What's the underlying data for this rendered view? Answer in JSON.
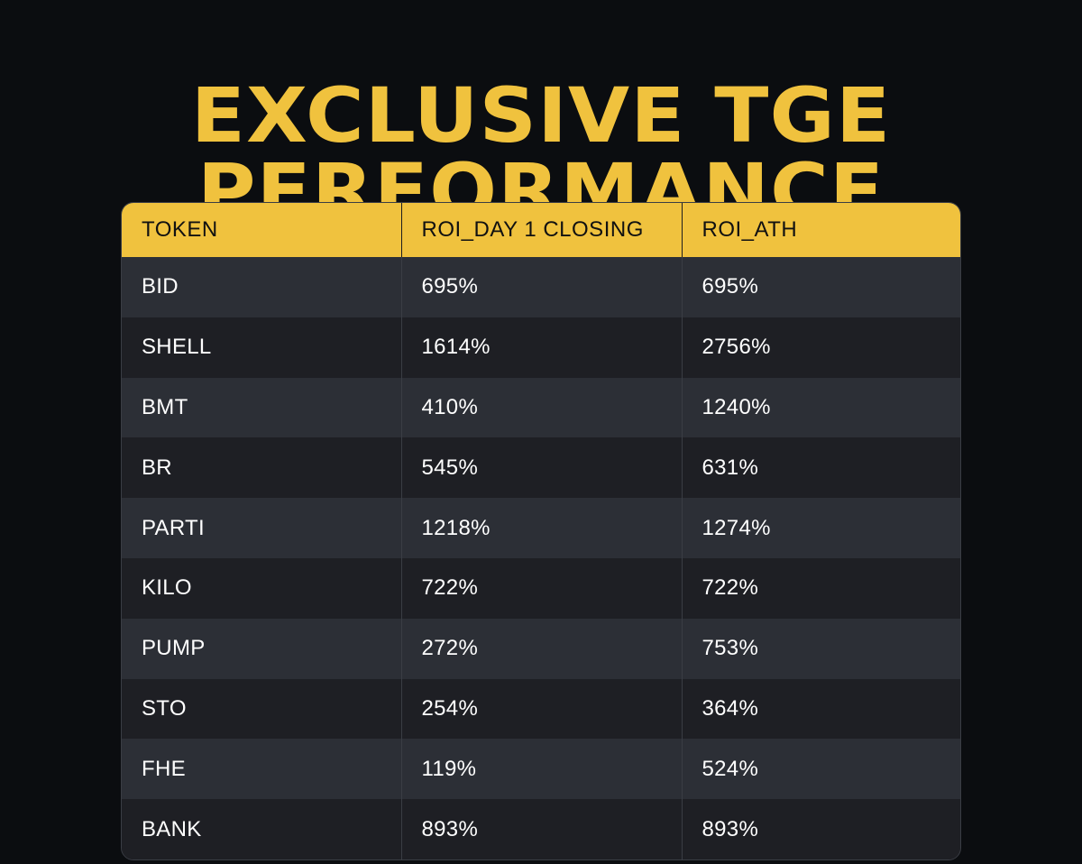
{
  "title": {
    "line1": "EXCLUSIVE TGE",
    "line2": "PERFORMANCE"
  },
  "table": {
    "headers": [
      "TOKEN",
      "ROI_DAY 1 CLOSING",
      "ROI_ATH"
    ],
    "rows": [
      {
        "token": "BID",
        "roi_day1_closing": "695%",
        "roi_ath": "695%"
      },
      {
        "token": "SHELL",
        "roi_day1_closing": "1614%",
        "roi_ath": "2756%"
      },
      {
        "token": "BMT",
        "roi_day1_closing": "410%",
        "roi_ath": "1240%"
      },
      {
        "token": "BR",
        "roi_day1_closing": "545%",
        "roi_ath": "631%"
      },
      {
        "token": "PARTI",
        "roi_day1_closing": "1218%",
        "roi_ath": "1274%"
      },
      {
        "token": "KILO",
        "roi_day1_closing": "722%",
        "roi_ath": "722%"
      },
      {
        "token": "PUMP",
        "roi_day1_closing": "272%",
        "roi_ath": "753%"
      },
      {
        "token": "STO",
        "roi_day1_closing": "254%",
        "roi_ath": "364%"
      },
      {
        "token": "FHE",
        "roi_day1_closing": "119%",
        "roi_ath": "524%"
      },
      {
        "token": "BANK",
        "roi_day1_closing": "893%",
        "roi_ath": "893%"
      }
    ]
  },
  "colors": {
    "accent": "#f0c23e",
    "background": "#0b0d10",
    "row_light": "#2c2f36",
    "row_dark": "#1e1f24"
  }
}
